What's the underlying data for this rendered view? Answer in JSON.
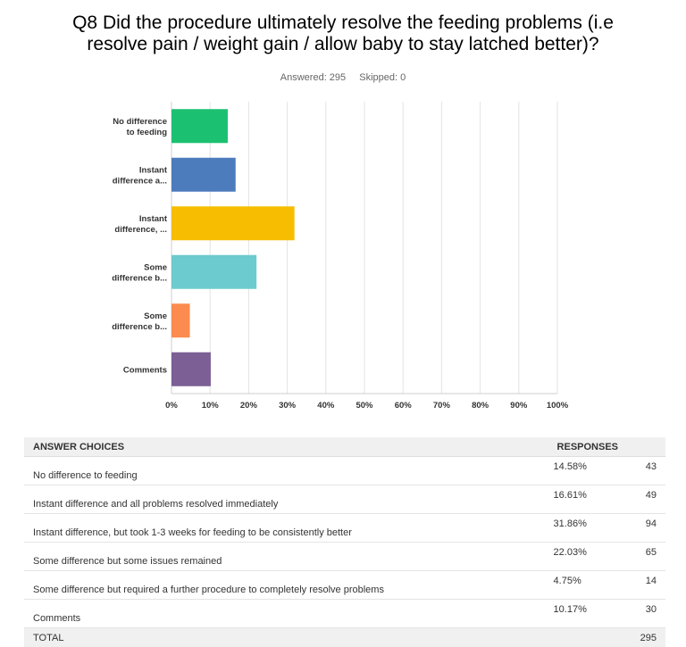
{
  "title": {
    "line1": "Q8 Did the procedure ultimately resolve the feeding problems (i.e",
    "line2": "resolve pain / weight gain / allow baby to stay latched better)?"
  },
  "meta": {
    "answered": "Answered: 295",
    "skipped": "Skipped: 0"
  },
  "chart_data": {
    "type": "bar",
    "orientation": "horizontal",
    "categories": [
      [
        "No difference",
        "to feeding"
      ],
      [
        "Instant",
        "difference a..."
      ],
      [
        "Instant",
        "difference, ..."
      ],
      [
        "Some",
        "difference b..."
      ],
      [
        "Some",
        "difference b..."
      ],
      [
        "Comments"
      ]
    ],
    "values": [
      14.58,
      16.61,
      31.86,
      22.03,
      4.75,
      10.17
    ],
    "colors": [
      "#1bc170",
      "#4d7cbd",
      "#f7bd00",
      "#6ccbce",
      "#fb8b4f",
      "#7b5f95"
    ],
    "xticks": [
      "0%",
      "10%",
      "20%",
      "30%",
      "40%",
      "50%",
      "60%",
      "70%",
      "80%",
      "90%",
      "100%"
    ],
    "xlim": [
      0,
      100
    ],
    "grid": true
  },
  "table": {
    "headers": {
      "choice": "ANSWER CHOICES",
      "responses": "RESPONSES"
    },
    "rows": [
      {
        "choice": "No difference to feeding",
        "pct": "14.58%",
        "count": "43"
      },
      {
        "choice": "Instant difference and all problems resolved immediately",
        "pct": "16.61%",
        "count": "49"
      },
      {
        "choice": "Instant difference, but took 1-3 weeks for feeding to be consistently better",
        "pct": "31.86%",
        "count": "94"
      },
      {
        "choice": "Some difference but some issues remained",
        "pct": "22.03%",
        "count": "65"
      },
      {
        "choice": "Some difference but required a further procedure to completely resolve problems",
        "pct": "4.75%",
        "count": "14"
      },
      {
        "choice": "Comments",
        "pct": "10.17%",
        "count": "30"
      }
    ],
    "total": {
      "label": "TOTAL",
      "count": "295"
    }
  }
}
